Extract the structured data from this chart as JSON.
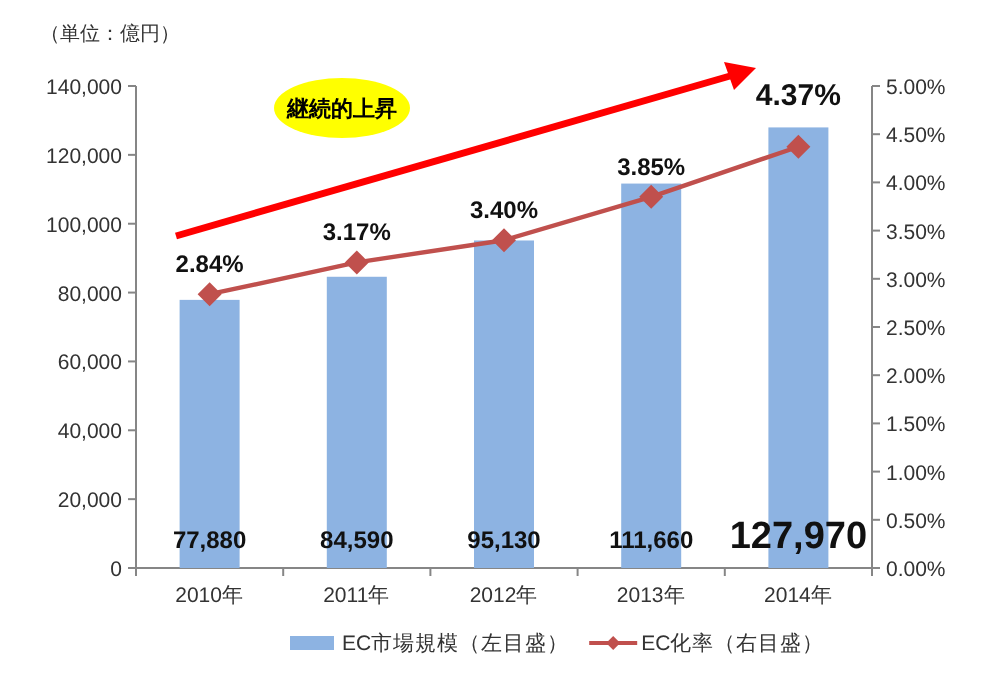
{
  "chart_data": {
    "type": "bar",
    "categories": [
      "2010年",
      "2011年",
      "2012年",
      "2013年",
      "2014年"
    ],
    "series": [
      {
        "name": "EC市場規模（左目盛）",
        "color": "#8db3e2",
        "values": [
          77880,
          84590,
          95130,
          111660,
          127970
        ],
        "value_labels": [
          "77,880",
          "84,590",
          "95,130",
          "111,660",
          "127,970"
        ]
      },
      {
        "name": "EC化率（右目盛）",
        "type": "line",
        "axis": "y2",
        "color": "#c0504d",
        "marker": "diamond",
        "values": [
          2.84,
          3.17,
          3.4,
          3.85,
          4.37
        ],
        "value_labels": [
          "2.84%",
          "3.17%",
          "3.40%",
          "3.85%",
          "4.37%"
        ]
      }
    ],
    "ylim": [
      0,
      140000
    ],
    "yticks": [
      {
        "value": 0,
        "label": "0"
      },
      {
        "value": 20000,
        "label": "20,000"
      },
      {
        "value": 40000,
        "label": "40,000"
      },
      {
        "value": 60000,
        "label": "60,000"
      },
      {
        "value": 80000,
        "label": "80,000"
      },
      {
        "value": 100000,
        "label": "100,000"
      },
      {
        "value": 120000,
        "label": "120,000"
      },
      {
        "value": 140000,
        "label": "140,000"
      }
    ],
    "y2lim": [
      0,
      5
    ],
    "y2ticks": [
      {
        "value": 0,
        "label": "0.00%"
      },
      {
        "value": 0.5,
        "label": "0.50%"
      },
      {
        "value": 1,
        "label": "1.00%"
      },
      {
        "value": 1.5,
        "label": "1.50%"
      },
      {
        "value": 2,
        "label": "2.00%"
      },
      {
        "value": 2.5,
        "label": "2.50%"
      },
      {
        "value": 3,
        "label": "3.00%"
      },
      {
        "value": 3.5,
        "label": "3.50%"
      },
      {
        "value": 4,
        "label": "4.00%"
      },
      {
        "value": 4.5,
        "label": "4.50%"
      },
      {
        "value": 5,
        "label": "5.00%"
      }
    ],
    "annotations": [
      "（単位：億円）",
      "継続的上昇"
    ],
    "legend": "bottom"
  }
}
